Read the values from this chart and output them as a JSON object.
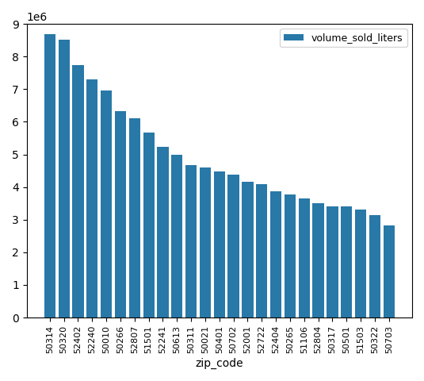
{
  "categories": [
    "50314",
    "50320",
    "52402",
    "52240",
    "50010",
    "50266",
    "52807",
    "51501",
    "52241",
    "50613",
    "50311",
    "50021",
    "50401",
    "50702",
    "52001",
    "52722",
    "52404",
    "50265",
    "51106",
    "52804",
    "50317",
    "50501",
    "51503",
    "50322",
    "50703"
  ],
  "values": [
    8680000,
    8520000,
    7750000,
    7300000,
    6950000,
    6330000,
    6100000,
    5680000,
    5230000,
    5000000,
    4680000,
    4600000,
    4480000,
    4380000,
    4170000,
    4090000,
    3880000,
    3780000,
    3650000,
    3500000,
    3420000,
    3400000,
    3300000,
    3150000,
    2820000
  ],
  "bar_color": "#2878a8",
  "xlabel": "zip_code",
  "legend_label": "volume_sold_liters",
  "ylim": [
    0,
    9000000
  ],
  "title": ""
}
